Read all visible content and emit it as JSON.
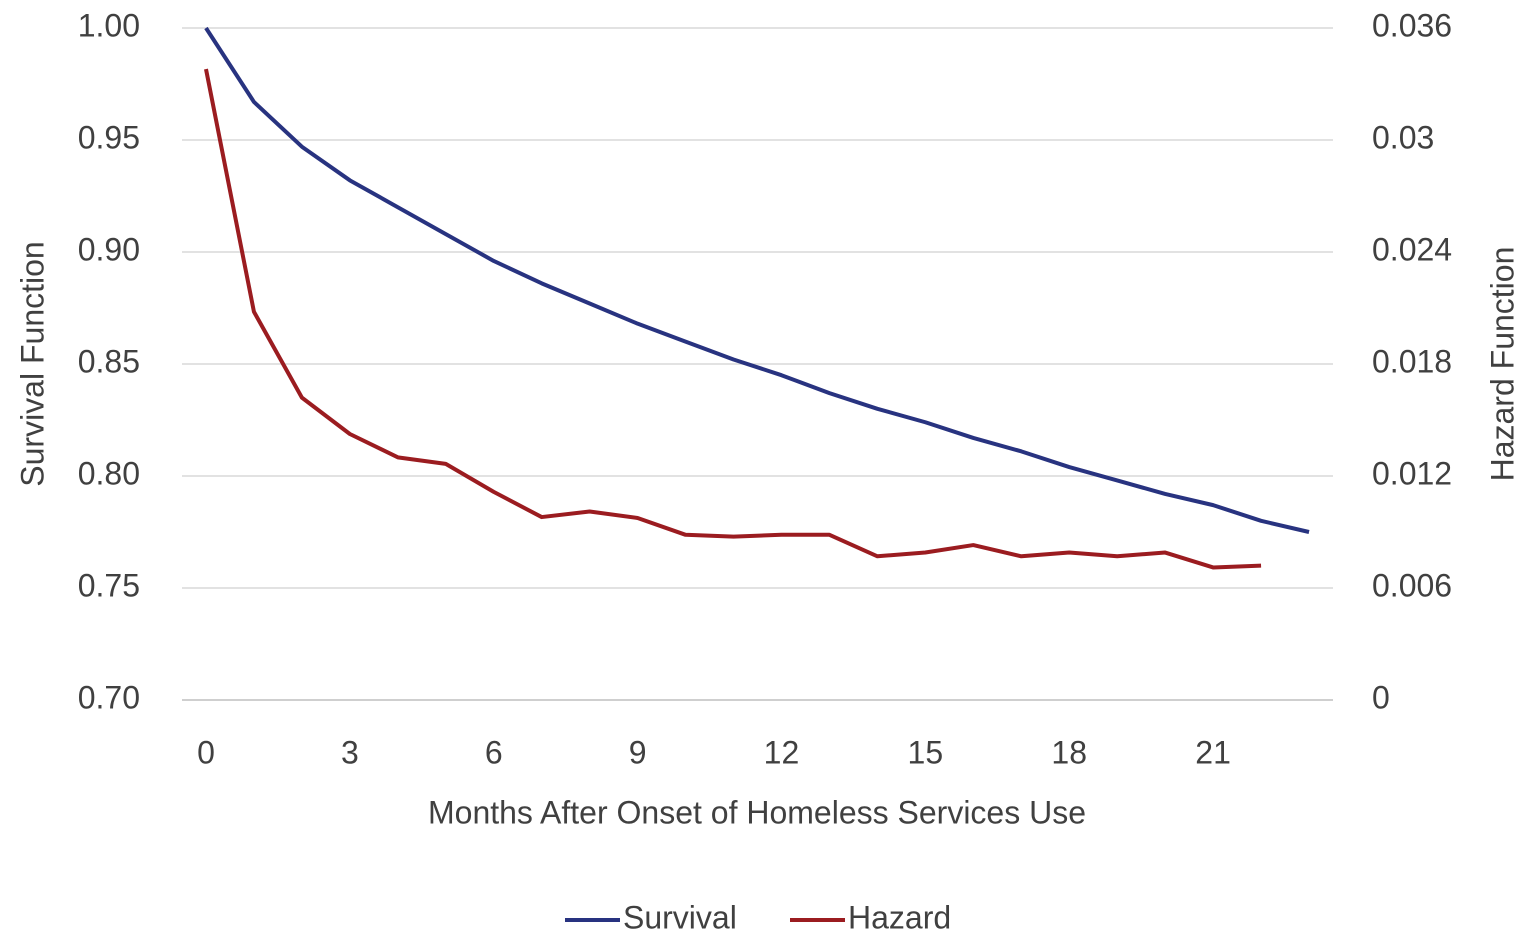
{
  "chart_data": {
    "type": "line",
    "xlabel": "Months After Onset of Homeless Services Use",
    "ylabel": "Survival Function",
    "y2label": "Hazard Function",
    "x": [
      0,
      1,
      2,
      3,
      4,
      5,
      6,
      7,
      8,
      9,
      10,
      11,
      12,
      13,
      14,
      15,
      16,
      17,
      18,
      19,
      20,
      21,
      22,
      23
    ],
    "xlim": [
      -0.5,
      23.5
    ],
    "xticks": [
      0,
      3,
      6,
      9,
      12,
      15,
      18,
      21
    ],
    "ylim": [
      0.7,
      1.0
    ],
    "yticks": [
      {
        "value": 0.7,
        "label": "0.70"
      },
      {
        "value": 0.75,
        "label": "0.75"
      },
      {
        "value": 0.8,
        "label": "0.80"
      },
      {
        "value": 0.85,
        "label": "0.85"
      },
      {
        "value": 0.9,
        "label": "0.90"
      },
      {
        "value": 0.95,
        "label": "0.95"
      },
      {
        "value": 1.0,
        "label": "1.00"
      }
    ],
    "y2lim": [
      0,
      0.036
    ],
    "y2ticks": [
      0,
      0.006,
      0.012,
      0.018,
      0.024,
      0.03,
      0.036
    ],
    "grid": true,
    "legend": "bottom",
    "series": [
      {
        "name": "Survival",
        "color": "#283380",
        "axis": "y",
        "values": [
          1.0,
          0.967,
          0.947,
          0.932,
          0.92,
          0.908,
          0.896,
          0.886,
          0.877,
          0.868,
          0.86,
          0.852,
          0.845,
          0.837,
          0.83,
          0.824,
          0.817,
          0.811,
          0.804,
          0.798,
          0.792,
          0.787,
          0.78,
          0.775
        ]
      },
      {
        "name": "Hazard",
        "color": "#9b1c20",
        "axis": "y2",
        "values": [
          0.0338,
          0.0208,
          0.0162,
          0.01425,
          0.013,
          0.01265,
          0.01115,
          0.0098,
          0.0101,
          0.00975,
          0.00885,
          0.00875,
          0.00885,
          0.00885,
          0.0077,
          0.0079,
          0.0083,
          0.0077,
          0.0079,
          0.0077,
          0.0079,
          0.0071,
          0.0072,
          null
        ]
      }
    ]
  }
}
